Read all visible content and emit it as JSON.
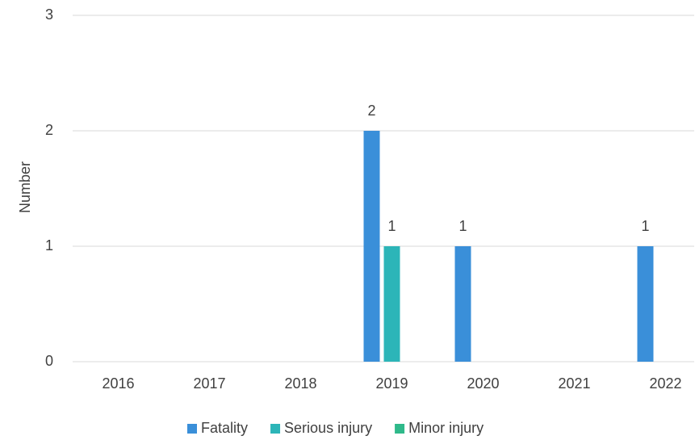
{
  "chart_data": {
    "type": "bar",
    "y_axis_label": "Number",
    "categories": [
      "2016",
      "2017",
      "2018",
      "2019",
      "2020",
      "2021",
      "2022"
    ],
    "series": [
      {
        "name": "Fatality",
        "color": "#3a8fd9",
        "values": [
          0,
          0,
          0,
          2,
          1,
          0,
          1
        ]
      },
      {
        "name": "Serious injury",
        "color": "#2cb5b8",
        "values": [
          0,
          0,
          0,
          1,
          0,
          0,
          0
        ]
      },
      {
        "name": "Minor injury",
        "color": "#2fb98a",
        "values": [
          0,
          0,
          0,
          0,
          0,
          0,
          0
        ]
      }
    ],
    "ylim": [
      0,
      3
    ],
    "yticks": [
      0,
      1,
      2,
      3
    ],
    "grid": true,
    "legend": "bottom"
  }
}
